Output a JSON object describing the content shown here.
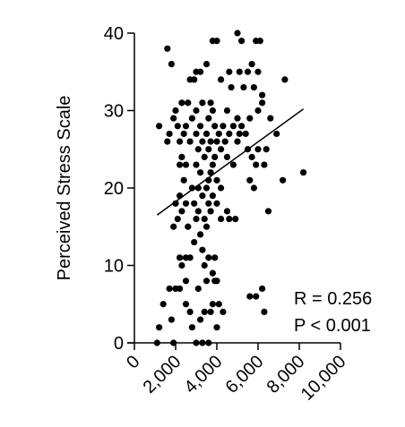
{
  "chart_data": {
    "type": "scatter",
    "y_label": "Perceived Stress Scale",
    "annotations": [
      "R = 0.256",
      "P < 0.001"
    ],
    "xlim": [
      0,
      10000
    ],
    "xticks": [
      0,
      {
        "value": 2000,
        "label": "2,000"
      },
      {
        "value": 4000,
        "label": "4,000"
      },
      {
        "value": 6000,
        "label": "6,000"
      },
      {
        "value": 8000,
        "label": "8,000"
      },
      {
        "value": 10000,
        "label": "10,000"
      }
    ],
    "ylim": [
      0,
      40
    ],
    "yticks": [
      0,
      10,
      20,
      30,
      40
    ],
    "color": "#000000",
    "fit": {
      "x": [
        1100,
        8200
      ],
      "y": [
        16.5,
        30.2
      ]
    },
    "x": [
      1600,
      1800,
      3800,
      4000,
      5000,
      5200,
      5900,
      6100,
      3500,
      3200,
      3000,
      2900,
      2700,
      4200,
      4600,
      5100,
      5500,
      5700,
      6000,
      7300,
      4700,
      5300,
      5800,
      6200,
      2300,
      2600,
      3300,
      3700,
      2000,
      3000,
      3800,
      4500,
      6000,
      6200,
      1900,
      2800,
      3600,
      5000,
      5600,
      6600,
      1200,
      2100,
      2500,
      3200,
      3900,
      4300,
      4800,
      5200,
      1700,
      2400,
      3000,
      3500,
      4100,
      4600,
      5100,
      5400,
      6900,
      1600,
      2200,
      2700,
      3300,
      3700,
      4000,
      4400,
      5000,
      3100,
      3600,
      4200,
      5500,
      6000,
      6400,
      2300,
      3400,
      3900,
      4500,
      5700,
      2200,
      2500,
      3000,
      3800,
      4800,
      5900,
      6300,
      3200,
      3700,
      8200,
      2400,
      3600,
      4000,
      5600,
      7200,
      2800,
      3100,
      3500,
      4200,
      5800,
      2200,
      3300,
      3800,
      2000,
      2500,
      2900,
      3600,
      4000,
      2300,
      3100,
      3700,
      4500,
      6500,
      2100,
      3000,
      3400,
      4200,
      4600,
      4900,
      1900,
      2600,
      3500,
      3200,
      2900,
      3300,
      2200,
      2500,
      2700,
      3600,
      3900,
      2300,
      3400,
      3800,
      2500,
      3500,
      3900,
      4000,
      1700,
      2000,
      2200,
      3100,
      6200,
      5600,
      5900,
      1400,
      2500,
      3800,
      4100,
      2700,
      3400,
      3700,
      4300,
      6300,
      1800,
      3200,
      1200,
      2800,
      4000,
      1100,
      1900,
      3000,
      3300,
      3600
    ],
    "y": [
      38,
      36,
      39,
      39,
      40,
      39,
      39,
      39,
      36,
      35,
      35,
      34,
      34,
      34,
      35,
      35,
      35,
      36,
      35,
      34,
      33,
      33,
      33,
      32,
      31,
      31,
      31,
      31,
      30,
      30,
      30,
      30,
      30,
      31,
      29,
      29,
      29,
      29,
      29,
      29,
      28,
      28,
      28,
      28,
      28,
      28,
      28,
      28,
      27,
      27,
      27,
      27,
      27,
      27,
      27,
      27,
      27,
      26,
      26,
      26,
      26,
      26,
      26,
      26,
      26,
      25,
      25,
      25,
      25,
      25,
      25,
      24,
      24,
      24,
      24,
      24,
      23,
      23,
      23,
      23,
      23,
      23,
      23,
      22,
      22,
      22,
      21,
      21,
      21,
      21,
      21,
      20,
      20,
      20,
      20,
      20,
      19,
      19,
      19,
      18,
      18,
      18,
      18,
      18,
      17,
      17,
      17,
      17,
      17,
      16,
      16,
      16,
      16,
      16,
      16,
      15,
      15,
      15,
      14,
      13,
      12,
      11,
      11,
      11,
      11,
      11,
      10,
      10,
      9,
      8,
      8,
      8,
      8,
      7,
      7,
      7,
      7,
      7,
      6,
      6,
      5,
      5,
      5,
      5,
      4,
      4,
      4,
      4,
      4,
      3,
      3,
      2,
      2,
      2,
      0,
      0,
      0,
      0,
      0
    ]
  }
}
